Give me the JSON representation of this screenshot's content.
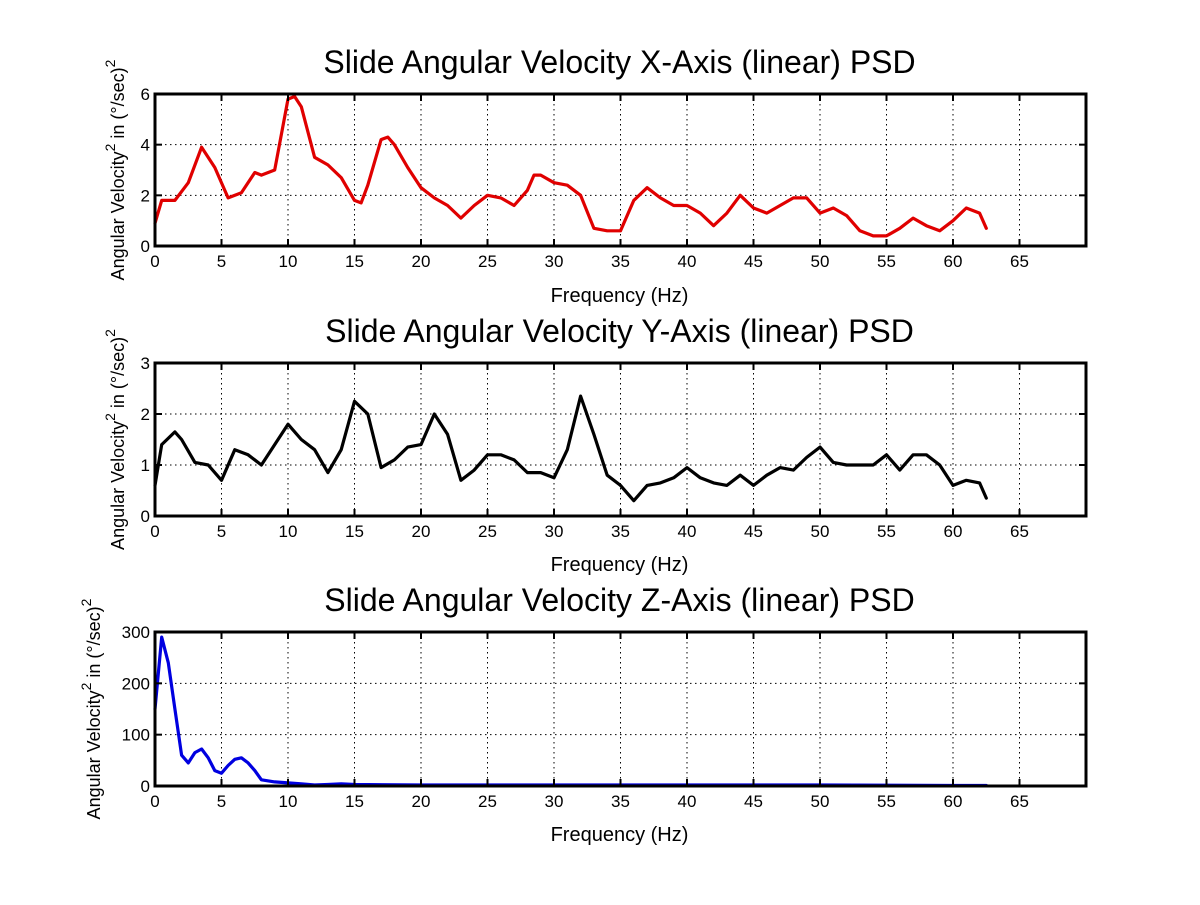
{
  "figure": {
    "background": "#ffffff",
    "axes_color": "#000000"
  },
  "chart_data": [
    {
      "type": "line",
      "title": "Slide Angular Velocity X-Axis (linear) PSD",
      "xlabel": "Frequency (Hz)",
      "ylabel_main": "Angular Velocity",
      "ylabel_unit": " in (°/sec)",
      "ylabel_exp": "2",
      "xlim": [
        0,
        70
      ],
      "ylim": [
        0,
        6
      ],
      "xticks": [
        0,
        5,
        10,
        15,
        20,
        25,
        30,
        35,
        40,
        45,
        50,
        55,
        60,
        65
      ],
      "yticks": [
        0,
        2,
        4,
        6
      ],
      "grid": true,
      "series": [
        {
          "color": "#e00000",
          "x": [
            0,
            0.5,
            1.5,
            2.5,
            3.5,
            4.5,
            5.5,
            6.5,
            7.5,
            8,
            9,
            10,
            10.5,
            11,
            12,
            13,
            14,
            15,
            15.5,
            16,
            17,
            17.5,
            18,
            19,
            20,
            21,
            22,
            23,
            24,
            25,
            26,
            27,
            28,
            28.5,
            29,
            30,
            31,
            32,
            33,
            34,
            35,
            36,
            37,
            38,
            39,
            40,
            41,
            42,
            43,
            44,
            45,
            46,
            47,
            48,
            49,
            50,
            51,
            52,
            53,
            54,
            55,
            56,
            57,
            58,
            59,
            60,
            61,
            62,
            62.5
          ],
          "y": [
            0.9,
            1.8,
            1.8,
            2.5,
            3.9,
            3.1,
            1.9,
            2.1,
            2.9,
            2.8,
            3.0,
            5.8,
            5.9,
            5.5,
            3.5,
            3.2,
            2.7,
            1.8,
            1.7,
            2.4,
            4.2,
            4.3,
            4.0,
            3.1,
            2.3,
            1.9,
            1.6,
            1.1,
            1.6,
            2.0,
            1.9,
            1.6,
            2.2,
            2.8,
            2.8,
            2.5,
            2.4,
            2.0,
            0.7,
            0.6,
            0.6,
            1.8,
            2.3,
            1.9,
            1.6,
            1.6,
            1.3,
            0.8,
            1.3,
            2.0,
            1.5,
            1.3,
            1.6,
            1.9,
            1.9,
            1.3,
            1.5,
            1.2,
            0.6,
            0.4,
            0.4,
            0.7,
            1.1,
            0.8,
            0.6,
            1.0,
            1.5,
            1.3,
            0.7
          ]
        }
      ]
    },
    {
      "type": "line",
      "title": "Slide Angular Velocity Y-Axis (linear) PSD",
      "xlabel": "Frequency (Hz)",
      "ylabel_main": "Angular Velocity",
      "ylabel_unit": " in (°/sec)",
      "ylabel_exp": "2",
      "xlim": [
        0,
        70
      ],
      "ylim": [
        0,
        3
      ],
      "xticks": [
        0,
        5,
        10,
        15,
        20,
        25,
        30,
        35,
        40,
        45,
        50,
        55,
        60,
        65
      ],
      "yticks": [
        0,
        1,
        2,
        3
      ],
      "grid": true,
      "series": [
        {
          "color": "#000000",
          "x": [
            0,
            0.5,
            1.5,
            2,
            3,
            4,
            5,
            6,
            7,
            8,
            9,
            10,
            11,
            12,
            13,
            14,
            15,
            16,
            17,
            18,
            19,
            20,
            21,
            22,
            23,
            24,
            25,
            26,
            27,
            28,
            29,
            30,
            31,
            32,
            33,
            34,
            35,
            36,
            37,
            38,
            39,
            40,
            41,
            42,
            43,
            44,
            45,
            46,
            47,
            48,
            49,
            50,
            51,
            52,
            53,
            54,
            55,
            56,
            57,
            58,
            59,
            60,
            61,
            62,
            62.5
          ],
          "y": [
            0.6,
            1.4,
            1.65,
            1.5,
            1.05,
            1.0,
            0.7,
            1.3,
            1.2,
            1.0,
            1.4,
            1.8,
            1.5,
            1.3,
            0.85,
            1.3,
            2.25,
            2.0,
            0.95,
            1.1,
            1.35,
            1.4,
            2.0,
            1.6,
            0.7,
            0.9,
            1.2,
            1.2,
            1.1,
            0.85,
            0.85,
            0.75,
            1.3,
            2.35,
            1.6,
            0.8,
            0.6,
            0.3,
            0.6,
            0.65,
            0.75,
            0.95,
            0.75,
            0.65,
            0.6,
            0.8,
            0.6,
            0.8,
            0.95,
            0.9,
            1.15,
            1.35,
            1.05,
            1.0,
            1.0,
            1.0,
            1.2,
            0.9,
            1.2,
            1.2,
            1.0,
            0.6,
            0.7,
            0.65,
            0.35
          ]
        }
      ]
    },
    {
      "type": "line",
      "title": "Slide Angular Velocity Z-Axis (linear) PSD",
      "xlabel": "Frequency (Hz)",
      "ylabel_main": "Angular Velocity",
      "ylabel_unit": " in (°/sec)",
      "ylabel_exp": "2",
      "xlim": [
        0,
        70
      ],
      "ylim": [
        0,
        300
      ],
      "xticks": [
        0,
        5,
        10,
        15,
        20,
        25,
        30,
        35,
        40,
        45,
        50,
        55,
        60,
        65
      ],
      "yticks": [
        0,
        100,
        200,
        300
      ],
      "grid": true,
      "series": [
        {
          "color": "#0000e0",
          "x": [
            0,
            0.5,
            1,
            1.5,
            2,
            2.5,
            3,
            3.5,
            4,
            4.5,
            5,
            5.5,
            6,
            6.5,
            7,
            7.5,
            8,
            9,
            10,
            11,
            12,
            13,
            14,
            15,
            20,
            30,
            40,
            50,
            60,
            62.5
          ],
          "y": [
            150,
            290,
            240,
            150,
            60,
            45,
            65,
            72,
            55,
            30,
            25,
            40,
            52,
            55,
            45,
            30,
            12,
            8,
            6,
            4,
            2,
            3,
            4,
            3,
            2,
            2,
            2,
            2,
            1,
            1
          ]
        }
      ]
    }
  ]
}
